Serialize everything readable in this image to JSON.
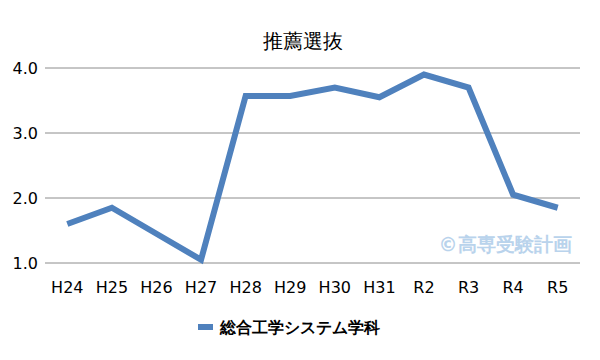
{
  "chart_data": {
    "type": "line",
    "title": "推薦選抜",
    "categories": [
      "H24",
      "H25",
      "H26",
      "H27",
      "H28",
      "H29",
      "H30",
      "H31",
      "R2",
      "R3",
      "R4",
      "R5"
    ],
    "series": [
      {
        "name": "総合工学システム学科",
        "color": "#4f81bd",
        "values": [
          1.6,
          1.85,
          1.45,
          1.05,
          3.57,
          3.57,
          3.7,
          3.55,
          3.9,
          3.7,
          2.05,
          1.85
        ]
      }
    ],
    "ylim": [
      1,
      4
    ],
    "yticks": [
      {
        "value": 1,
        "label": "1.0"
      },
      {
        "value": 2,
        "label": "2.0"
      },
      {
        "value": 3,
        "label": "3.0"
      },
      {
        "value": 4,
        "label": "4.0"
      }
    ],
    "grid": true,
    "legend": "bottom",
    "annotation": "©高専受験計画"
  }
}
